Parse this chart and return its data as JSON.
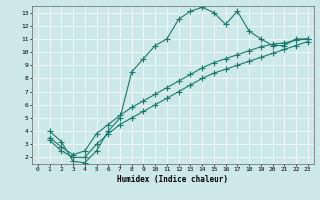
{
  "xlabel": "Humidex (Indice chaleur)",
  "xlim": [
    -0.5,
    23.5
  ],
  "ylim": [
    1.5,
    13.5
  ],
  "yticks": [
    2,
    3,
    4,
    5,
    6,
    7,
    8,
    9,
    10,
    11,
    12,
    13
  ],
  "xticks": [
    0,
    1,
    2,
    3,
    4,
    5,
    6,
    7,
    8,
    9,
    10,
    11,
    12,
    13,
    14,
    15,
    16,
    17,
    18,
    19,
    20,
    21,
    22,
    23
  ],
  "bg_color": "#cce8e8",
  "grid_color": "#b0d0d0",
  "line_color": "#1a7a6e",
  "line1_x": [
    1,
    2,
    3,
    4,
    5,
    6,
    7,
    8,
    9,
    10,
    11,
    12,
    13,
    14,
    15,
    16,
    17,
    18,
    19,
    20,
    21,
    22,
    23
  ],
  "line1_y": [
    4.0,
    3.2,
    1.7,
    1.6,
    2.5,
    4.0,
    5.0,
    8.5,
    9.5,
    10.5,
    11.0,
    12.5,
    13.1,
    13.4,
    13.0,
    12.1,
    13.1,
    11.6,
    11.0,
    10.5,
    10.5,
    11.0,
    11.0
  ],
  "line2_x": [
    1,
    2,
    3,
    4,
    5,
    6,
    7,
    8,
    9,
    10,
    11,
    12,
    13,
    14,
    15,
    16,
    17,
    18,
    19,
    20,
    21,
    22,
    23
  ],
  "line2_y": [
    3.5,
    2.8,
    2.2,
    2.5,
    3.8,
    4.5,
    5.2,
    5.8,
    6.3,
    6.8,
    7.3,
    7.8,
    8.3,
    8.8,
    9.2,
    9.5,
    9.8,
    10.1,
    10.4,
    10.6,
    10.7,
    10.9,
    11.0
  ],
  "line3_x": [
    1,
    2,
    3,
    4,
    5,
    6,
    7,
    8,
    9,
    10,
    11,
    12,
    13,
    14,
    15,
    16,
    17,
    18,
    19,
    20,
    21,
    22,
    23
  ],
  "line3_y": [
    3.3,
    2.5,
    2.0,
    2.0,
    3.0,
    3.8,
    4.5,
    5.0,
    5.5,
    6.0,
    6.5,
    7.0,
    7.5,
    8.0,
    8.4,
    8.7,
    9.0,
    9.3,
    9.6,
    9.9,
    10.2,
    10.5,
    10.8
  ]
}
